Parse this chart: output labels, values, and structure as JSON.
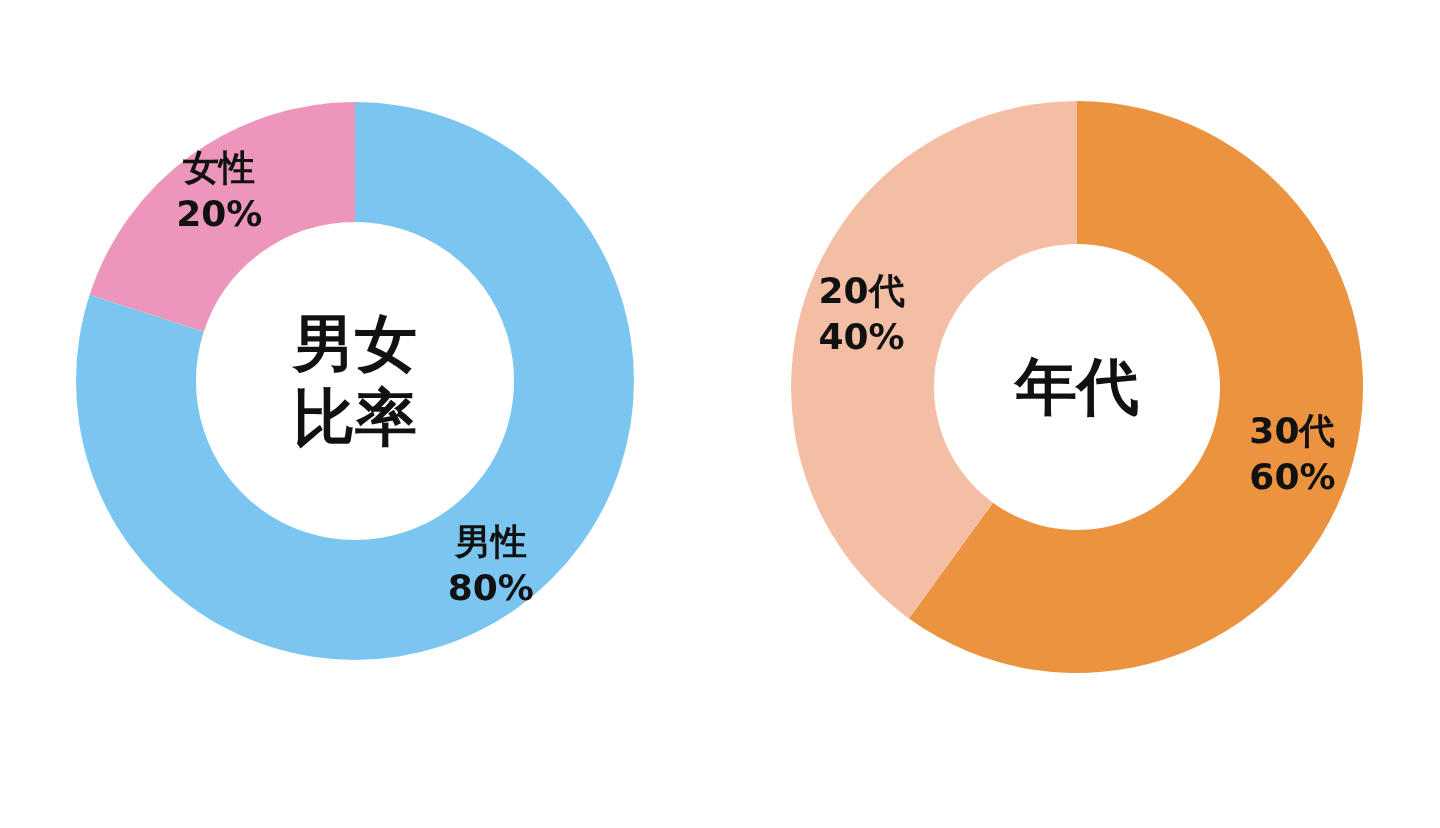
{
  "chart_data": [
    {
      "type": "donut",
      "title": "男女比率",
      "categories": [
        "男性",
        "女性"
      ],
      "values": [
        80,
        20
      ],
      "colors": [
        "#7bc6f0",
        "#ec96bb"
      ],
      "value_labels": [
        "80%",
        "20%"
      ]
    },
    {
      "type": "donut",
      "title": "年代",
      "categories": [
        "30代",
        "20代"
      ],
      "values": [
        60,
        40
      ],
      "colors": [
        "#ec9340",
        "#f4bea5"
      ],
      "value_labels": [
        "60%",
        "40%"
      ]
    }
  ]
}
